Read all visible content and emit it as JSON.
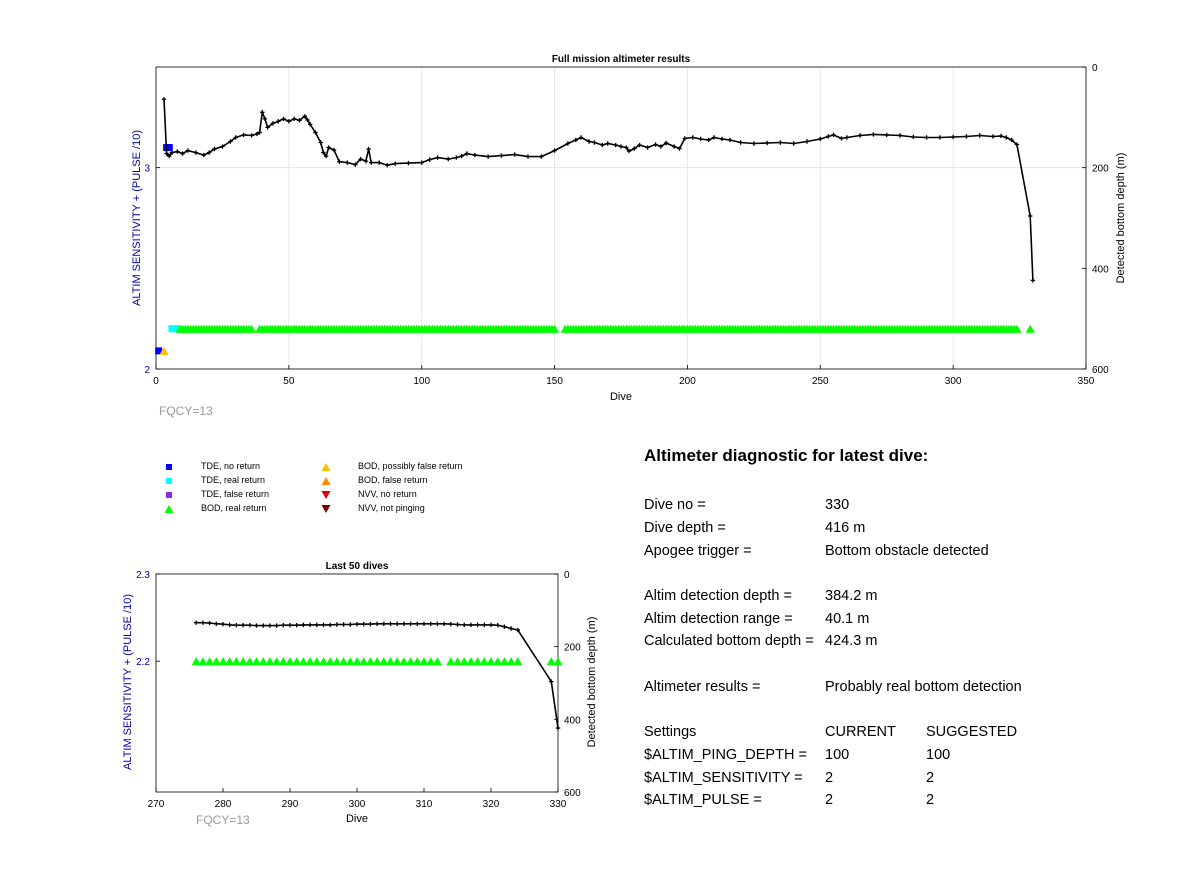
{
  "colors": {
    "tde_no_return": "#0000ff",
    "tde_real_return": "#00ffff",
    "tde_false_return": "#8a2be2",
    "bod_real_return": "#00ff00",
    "bod_possibly_false": "#ffc000",
    "bod_false": "#ff8c00",
    "nvv_no_return": "#e00000",
    "nvv_not_pinging": "#800000",
    "depth_line": "#000000",
    "left_axis_label": "#0000aa",
    "fqcy_text": "#999999"
  },
  "legend": {
    "items": [
      {
        "label": "TDE, no return",
        "symbol": "square",
        "color_key": "tde_no_return"
      },
      {
        "label": "TDE, real return",
        "symbol": "square",
        "color_key": "tde_real_return"
      },
      {
        "label": "TDE, false return",
        "symbol": "square",
        "color_key": "tde_false_return"
      },
      {
        "label": "BOD, real return",
        "symbol": "triangle-up",
        "color_key": "bod_real_return"
      },
      {
        "label": "BOD, possibly false return",
        "symbol": "triangle-up",
        "color_key": "bod_possibly_false"
      },
      {
        "label": "BOD, false return",
        "symbol": "triangle-up",
        "color_key": "bod_false"
      },
      {
        "label": "NVV, no return",
        "symbol": "triangle-down",
        "color_key": "nvv_no_return"
      },
      {
        "label": "NVV, not pinging",
        "symbol": "triangle-down",
        "color_key": "nvv_not_pinging"
      }
    ]
  },
  "chart_data": [
    {
      "type": "scatter",
      "title": "Full mission altimeter results",
      "xlabel": "Dive",
      "ylabel": "ALTIM SENSITIVITY + (PULSE /10)",
      "ylabel_right": "Detected bottom depth (m)",
      "xlim": [
        0,
        350
      ],
      "ylim": [
        2,
        3.5
      ],
      "ylim_right": [
        600,
        0
      ],
      "right_axis_reversed": true,
      "xticks": [
        "0",
        "50",
        "100",
        "150",
        "200",
        "250",
        "300",
        "350"
      ],
      "yticks": [
        "2",
        "3"
      ],
      "yticks_right": [
        "0",
        "200",
        "400",
        "600"
      ],
      "grid": true,
      "annotation": "FQCY=13",
      "series": [
        {
          "name": "TDE, no return",
          "color_key": "tde_no_return",
          "symbol": "square",
          "points": [
            [
              1,
              2.09
            ],
            [
              4,
              3.1
            ],
            [
              5,
              3.1
            ]
          ]
        },
        {
          "name": "TDE, real return",
          "color_key": "tde_real_return",
          "symbol": "square",
          "points": [
            [
              6,
              2.2
            ],
            [
              7,
              2.2
            ],
            [
              8,
              2.2
            ]
          ]
        },
        {
          "name": "BOD, possibly false return",
          "color_key": "bod_possibly_false",
          "symbol": "triangle-up",
          "points": [
            [
              3,
              2.09
            ]
          ]
        },
        {
          "name": "BOD, real return",
          "color_key": "bod_real_return",
          "symbol": "triangle-up",
          "ranges": [
            [
              9,
              36
            ],
            [
              39,
              150
            ],
            [
              154,
              324
            ],
            [
              329,
              329
            ]
          ],
          "y": 2.2
        }
      ],
      "depth_line": {
        "name": "Detected bottom depth",
        "points": [
          [
            3,
            64
          ],
          [
            4,
            172
          ],
          [
            5,
            177
          ],
          [
            6,
            170
          ],
          [
            8,
            168
          ],
          [
            10,
            172
          ],
          [
            12,
            166
          ],
          [
            15,
            170
          ],
          [
            18,
            175
          ],
          [
            20,
            170
          ],
          [
            22,
            163
          ],
          [
            25,
            158
          ],
          [
            28,
            148
          ],
          [
            30,
            140
          ],
          [
            33,
            135
          ],
          [
            36,
            136
          ],
          [
            38,
            133
          ],
          [
            39,
            130
          ],
          [
            40,
            90
          ],
          [
            41,
            103
          ],
          [
            42,
            120
          ],
          [
            44,
            112
          ],
          [
            46,
            108
          ],
          [
            48,
            103
          ],
          [
            50,
            108
          ],
          [
            52,
            103
          ],
          [
            54,
            106
          ],
          [
            56,
            98
          ],
          [
            57,
            105
          ],
          [
            58,
            114
          ],
          [
            60,
            130
          ],
          [
            62,
            150
          ],
          [
            63,
            170
          ],
          [
            64,
            177
          ],
          [
            65,
            160
          ],
          [
            67,
            165
          ],
          [
            69,
            188
          ],
          [
            72,
            190
          ],
          [
            75,
            194
          ],
          [
            77,
            183
          ],
          [
            79,
            187
          ],
          [
            80,
            163
          ],
          [
            81,
            190
          ],
          [
            84,
            190
          ],
          [
            87,
            195
          ],
          [
            90,
            192
          ],
          [
            95,
            191
          ],
          [
            100,
            190
          ],
          [
            103,
            184
          ],
          [
            106,
            180
          ],
          [
            110,
            183
          ],
          [
            113,
            180
          ],
          [
            115,
            177
          ],
          [
            117,
            172
          ],
          [
            120,
            175
          ],
          [
            125,
            178
          ],
          [
            130,
            176
          ],
          [
            135,
            174
          ],
          [
            140,
            178
          ],
          [
            145,
            178
          ],
          [
            150,
            166
          ],
          [
            155,
            152
          ],
          [
            158,
            145
          ],
          [
            160,
            140
          ],
          [
            163,
            148
          ],
          [
            165,
            150
          ],
          [
            168,
            155
          ],
          [
            170,
            152
          ],
          [
            173,
            155
          ],
          [
            175,
            158
          ],
          [
            177,
            160
          ],
          [
            178,
            167
          ],
          [
            180,
            162
          ],
          [
            182,
            155
          ],
          [
            185,
            160
          ],
          [
            188,
            154
          ],
          [
            190,
            158
          ],
          [
            192,
            151
          ],
          [
            195,
            158
          ],
          [
            197,
            162
          ],
          [
            199,
            142
          ],
          [
            202,
            140
          ],
          [
            205,
            143
          ],
          [
            208,
            145
          ],
          [
            210,
            140
          ],
          [
            213,
            143
          ],
          [
            216,
            145
          ],
          [
            220,
            150
          ],
          [
            225,
            152
          ],
          [
            230,
            151
          ],
          [
            235,
            150
          ],
          [
            240,
            152
          ],
          [
            245,
            148
          ],
          [
            250,
            143
          ],
          [
            253,
            138
          ],
          [
            255,
            135
          ],
          [
            258,
            142
          ],
          [
            260,
            140
          ],
          [
            265,
            136
          ],
          [
            270,
            134
          ],
          [
            275,
            135
          ],
          [
            280,
            136
          ],
          [
            285,
            139
          ],
          [
            290,
            140
          ],
          [
            295,
            140
          ],
          [
            300,
            139
          ],
          [
            305,
            138
          ],
          [
            310,
            136
          ],
          [
            315,
            138
          ],
          [
            318,
            137
          ],
          [
            320,
            140
          ],
          [
            322,
            145
          ],
          [
            324,
            154
          ],
          [
            329,
            296
          ],
          [
            330,
            424
          ]
        ]
      }
    },
    {
      "type": "scatter",
      "title": "Last 50 dives",
      "xlabel": "Dive",
      "ylabel": "ALTIM SENSITIVITY + (PULSE /10)",
      "ylabel_right": "Detected bottom depth (m)",
      "xlim": [
        270,
        330
      ],
      "ylim": [
        2.05,
        2.3
      ],
      "ylim_right": [
        600,
        0
      ],
      "right_axis_reversed": true,
      "xticks": [
        "270",
        "280",
        "290",
        "300",
        "310",
        "320",
        "330"
      ],
      "yticks": [
        "2.2",
        "2.3"
      ],
      "yticks_right": [
        "0",
        "200",
        "400",
        "600"
      ],
      "grid": false,
      "annotation": "FQCY=13",
      "series": [
        {
          "name": "BOD, real return",
          "color_key": "bod_real_return",
          "symbol": "triangle-up",
          "ranges": [
            [
              276,
              312
            ],
            [
              314,
              324
            ],
            [
              329,
              330
            ]
          ],
          "y": 2.2
        }
      ],
      "depth_line": {
        "name": "Detected bottom depth",
        "points": [
          [
            276,
            134
          ],
          [
            277,
            134
          ],
          [
            278,
            135
          ],
          [
            279,
            137
          ],
          [
            280,
            138
          ],
          [
            281,
            140
          ],
          [
            282,
            141
          ],
          [
            283,
            141
          ],
          [
            284,
            141
          ],
          [
            285,
            142
          ],
          [
            286,
            142
          ],
          [
            287,
            142
          ],
          [
            288,
            142
          ],
          [
            289,
            141
          ],
          [
            290,
            141
          ],
          [
            291,
            141
          ],
          [
            292,
            140
          ],
          [
            293,
            140
          ],
          [
            294,
            140
          ],
          [
            295,
            140
          ],
          [
            296,
            140
          ],
          [
            297,
            139
          ],
          [
            298,
            139
          ],
          [
            299,
            139
          ],
          [
            300,
            138
          ],
          [
            301,
            138
          ],
          [
            302,
            138
          ],
          [
            303,
            137
          ],
          [
            304,
            137
          ],
          [
            305,
            137
          ],
          [
            306,
            137
          ],
          [
            307,
            137
          ],
          [
            308,
            137
          ],
          [
            309,
            137
          ],
          [
            310,
            137
          ],
          [
            311,
            137
          ],
          [
            312,
            137
          ],
          [
            313,
            137
          ],
          [
            314,
            138
          ],
          [
            315,
            139
          ],
          [
            316,
            140
          ],
          [
            317,
            140
          ],
          [
            318,
            140
          ],
          [
            319,
            140
          ],
          [
            320,
            140
          ],
          [
            321,
            141
          ],
          [
            322,
            145
          ],
          [
            323,
            150
          ],
          [
            324,
            154
          ],
          [
            329,
            296
          ],
          [
            330,
            424
          ]
        ]
      }
    }
  ],
  "diagnostic": {
    "title": "Altimeter diagnostic for latest dive:",
    "rows": [
      {
        "label": "Dive no =",
        "value": "330"
      },
      {
        "label": "Dive depth =",
        "value": "416 m"
      },
      {
        "label": "Apogee trigger =",
        "value": "Bottom obstacle detected"
      }
    ],
    "rows2": [
      {
        "label": "Altim detection depth =",
        "value": "384.2 m"
      },
      {
        "label": "Altim detection range =",
        "value": "40.1 m"
      },
      {
        "label": "Calculated bottom depth =",
        "value": "424.3 m"
      }
    ],
    "results": {
      "label": "Altimeter results =",
      "value": "Probably real bottom detection"
    },
    "settings": {
      "header": {
        "label": "Settings",
        "current": "CURRENT",
        "suggested": "SUGGESTED"
      },
      "rows": [
        {
          "label": "$ALTIM_PING_DEPTH =",
          "current": "100",
          "suggested": "100"
        },
        {
          "label": "$ALTIM_SENSITIVITY =",
          "current": "2",
          "suggested": "2"
        },
        {
          "label": "$ALTIM_PULSE =",
          "current": "2",
          "suggested": "2"
        }
      ]
    }
  }
}
